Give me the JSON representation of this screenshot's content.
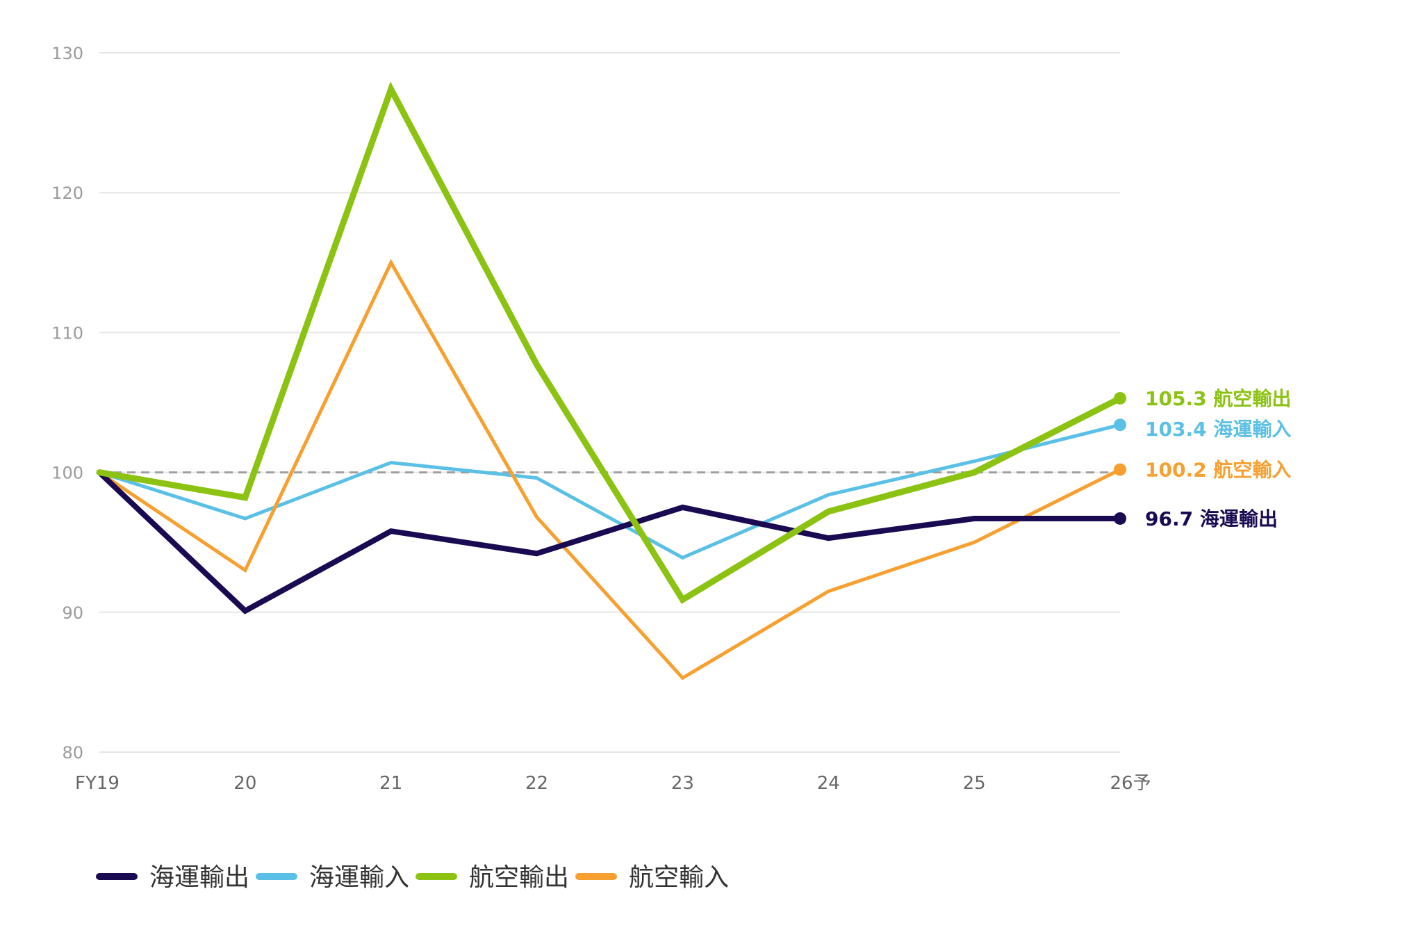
{
  "chart_data": {
    "type": "line",
    "categories": [
      "FY19",
      "20",
      "21",
      "22",
      "23",
      "24",
      "25",
      "26予"
    ],
    "ylim": [
      80,
      130
    ],
    "yticks": [
      80,
      90,
      100,
      110,
      120,
      130
    ],
    "reference_line": 100,
    "grid": true,
    "legend_position": "bottom-left",
    "series": [
      {
        "name": "海運輸出",
        "color": "#1a0a52",
        "width": 8,
        "values": [
          100,
          90.1,
          95.8,
          94.2,
          97.5,
          95.3,
          96.7,
          96.7
        ],
        "end_label": "96.7 海運輸出"
      },
      {
        "name": "海運輸入",
        "color": "#5bc0e6",
        "width": 5,
        "values": [
          100,
          96.7,
          100.7,
          99.6,
          93.9,
          98.4,
          100.8,
          103.4
        ],
        "end_label": "103.4 海運輸入"
      },
      {
        "name": "航空輸出",
        "color": "#8cc313",
        "width": 9,
        "values": [
          100,
          98.2,
          127.4,
          107.7,
          90.9,
          97.2,
          100.0,
          105.3
        ],
        "end_label": "105.3 航空輸出"
      },
      {
        "name": "航空輸入",
        "color": "#f7a030",
        "width": 5,
        "values": [
          100,
          93.0,
          115.0,
          96.8,
          85.3,
          91.5,
          95.0,
          100.2
        ],
        "end_label": "100.2 航空輸入"
      }
    ]
  }
}
